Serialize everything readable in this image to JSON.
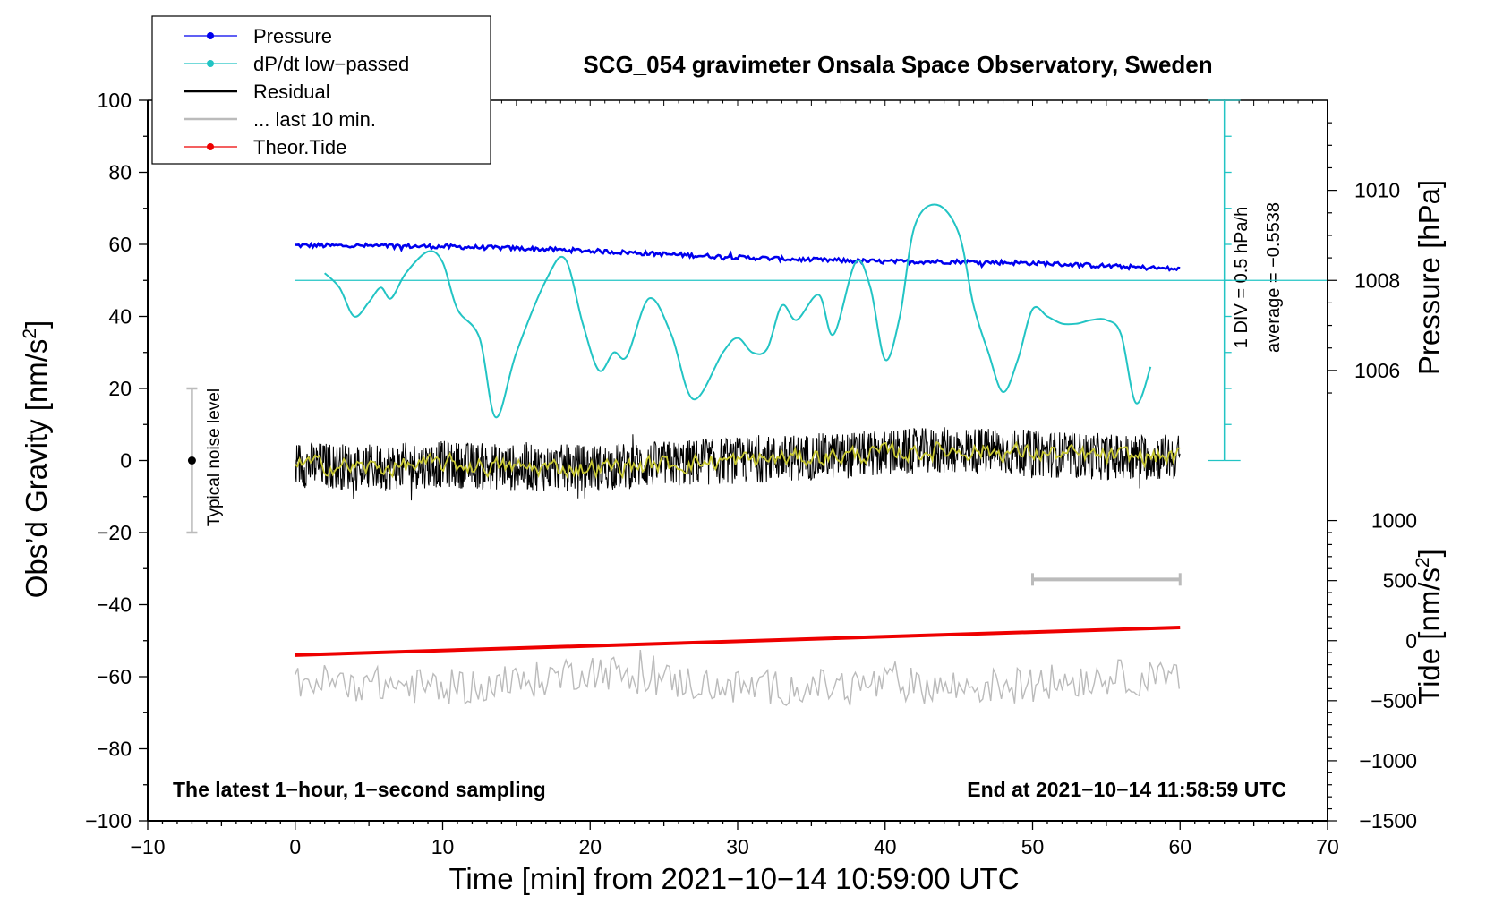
{
  "chart_data": {
    "type": "line",
    "title": "SCG_054 gravimeter Onsala Space Observatory, Sweden",
    "xlabel": "Time [min] from 2021−10−14 10:59:00 UTC",
    "xlim": [
      -10,
      70
    ],
    "xticks": [
      -10,
      0,
      10,
      20,
      30,
      40,
      50,
      60,
      70
    ],
    "xtick_labels": [
      "−10",
      "0",
      "10",
      "20",
      "30",
      "40",
      "50",
      "60",
      "70"
    ],
    "y_left": {
      "label": "Obs’d Gravity [nm/s",
      "label_sup": "2",
      "label_end": "]",
      "lim": [
        -100,
        100
      ],
      "ticks": [
        -100,
        -80,
        -60,
        -40,
        -20,
        0,
        20,
        40,
        60,
        80,
        100
      ],
      "tick_labels": [
        "−100",
        "−80",
        "−60",
        "−40",
        "−20",
        "0",
        "20",
        "40",
        "60",
        "80",
        "100"
      ]
    },
    "y_right_pressure": {
      "label": "Pressure [hPa]",
      "ticks": [
        1006,
        1008,
        1010
      ],
      "tick_labels": [
        "1006",
        "1008",
        "1010"
      ],
      "mapping_note": "1008 hPa at gravity 50, 2 hPa per 25 gravity units"
    },
    "y_right_tide": {
      "label": "Tide [nm/s",
      "label_sup": "2",
      "label_end": "]",
      "ticks": [
        -1500,
        -1000,
        -500,
        0,
        500,
        1000
      ],
      "tick_labels": [
        "−1500",
        "−1000",
        "−500",
        "0",
        "500",
        "1000"
      ],
      "mapping_note": "0 at gravity -50, 500 per 16.67 gravity units"
    },
    "dpdt_scale": {
      "label1": "1 DIV = 0.5 hPa/h",
      "label2": "average = −0.5538",
      "x": 63,
      "y_range": [
        0,
        100
      ],
      "divisions": 10
    },
    "noise_bar": {
      "label": "Typical noise level",
      "x": -7,
      "y_center": 0,
      "y_range": [
        -20,
        20
      ]
    },
    "last10_bar": {
      "x_range": [
        50,
        60
      ],
      "y": -33
    },
    "reference_line": {
      "y": 50,
      "x_range": [
        0,
        70
      ]
    },
    "legend": [
      {
        "label": "Pressure",
        "color": "#0000ee",
        "style": "line-dot"
      },
      {
        "label": "dP/dt low−passed",
        "color": "#22c4c4",
        "style": "line-dot"
      },
      {
        "label": "Residual",
        "color": "#000000",
        "style": "line"
      },
      {
        "label": "... last 10 min.",
        "color": "#bbbbbb",
        "style": "line"
      },
      {
        "label": "Theor.Tide",
        "color": "#ee0000",
        "style": "line-dot"
      }
    ],
    "annotations": {
      "bottom_left": "The latest 1−hour, 1−second sampling",
      "bottom_right": "End at 2021−10−14 11:58:59 UTC"
    },
    "series": [
      {
        "name": "Pressure",
        "axis": "gravity-scaled",
        "color": "#0000ee",
        "x": [
          0,
          5,
          10,
          15,
          20,
          25,
          30,
          35,
          40,
          45,
          50,
          55,
          60
        ],
        "y": [
          59.7,
          59.6,
          59.4,
          58.9,
          58.2,
          57.3,
          56.4,
          55.7,
          55.2,
          55.2,
          54.8,
          54.0,
          53.1
        ]
      },
      {
        "name": "dP/dt low-passed",
        "axis": "gravity",
        "color": "#22c4c4",
        "x": [
          2,
          3,
          4,
          5,
          5.8,
          6.5,
          7.5,
          9,
          10,
          11,
          12.5,
          13.6,
          15,
          17,
          18.3,
          19.5,
          20.6,
          21.6,
          22.5,
          24,
          25.5,
          27,
          29,
          30,
          31,
          32,
          33,
          34,
          35.5,
          36.5,
          38,
          39,
          40,
          41,
          42,
          43.5,
          45,
          46,
          47,
          48,
          49,
          50,
          51,
          52,
          53,
          54,
          55,
          56,
          57,
          58
        ],
        "y": [
          52,
          48,
          40,
          44,
          48,
          45,
          52,
          58,
          55,
          42,
          34,
          12,
          30,
          50,
          56,
          38,
          25,
          30,
          29,
          45,
          35,
          17,
          30,
          34,
          30,
          31,
          43,
          39,
          46,
          35,
          55,
          48,
          28,
          40,
          65,
          71,
          63,
          43,
          30,
          19,
          28,
          42,
          40,
          38,
          38,
          39,
          39,
          35,
          16,
          26
        ]
      },
      {
        "name": "Residual",
        "axis": "gravity",
        "color": "#000000",
        "x": [
          0,
          5,
          10,
          15,
          20,
          25,
          30,
          35,
          40,
          45,
          50,
          55,
          60
        ],
        "y": [
          -1,
          -2,
          -1,
          -2,
          -2,
          -1,
          0,
          1,
          2,
          3,
          2,
          1,
          1
        ]
      },
      {
        "name": "Residual (smoothed)",
        "axis": "gravity",
        "color": "#c8c832",
        "x": [
          0,
          5,
          10,
          15,
          20,
          25,
          30,
          35,
          40,
          45,
          50,
          55,
          60
        ],
        "y": [
          -1,
          -2,
          -1,
          -2,
          -2,
          -1,
          0,
          1,
          2,
          3,
          2,
          1,
          1
        ]
      },
      {
        "name": "... last 10 min.",
        "axis": "gravity",
        "color": "#bbbbbb",
        "x": [
          0,
          5,
          10,
          15,
          20,
          25,
          30,
          35,
          40,
          45,
          50,
          55,
          60
        ],
        "y": [
          -61,
          -62,
          -63,
          -62,
          -58,
          -61,
          -63,
          -63,
          -62,
          -63,
          -62,
          -60,
          -61
        ]
      },
      {
        "name": "Theor.Tide",
        "axis": "tide",
        "color": "#ee0000",
        "x": [
          0,
          60
        ],
        "y": [
          -120,
          110
        ]
      }
    ]
  }
}
